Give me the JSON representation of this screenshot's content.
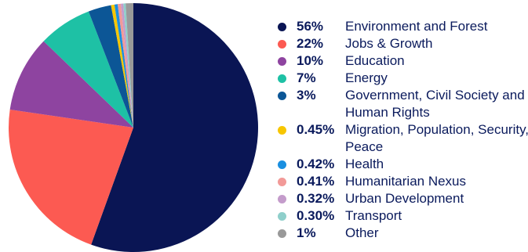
{
  "chart_data": {
    "type": "pie",
    "title": "",
    "series": [
      {
        "values": [
          56,
          22,
          10,
          7,
          3,
          0.45,
          0.42,
          0.41,
          0.32,
          0.3,
          1
        ]
      }
    ],
    "slices": [
      {
        "label": "Environment and Forest",
        "pct_label": "56%",
        "value": 56,
        "color": "#0a1554"
      },
      {
        "label": "Jobs & Growth",
        "pct_label": "22%",
        "value": 22,
        "color": "#fc5a52"
      },
      {
        "label": "Education",
        "pct_label": "10%",
        "value": 10,
        "color": "#8e44a0"
      },
      {
        "label": "Energy",
        "pct_label": "7%",
        "value": 7,
        "color": "#1ec1a5"
      },
      {
        "label": "Government, Civil Society and Human Rights",
        "pct_label": "3%",
        "value": 3,
        "color": "#0c5696"
      },
      {
        "label": "Migration, Population, Security, Peace",
        "pct_label": "0.45%",
        "value": 0.45,
        "color": "#f7c600"
      },
      {
        "label": "Health",
        "pct_label": "0.42%",
        "value": 0.42,
        "color": "#1a8fe0"
      },
      {
        "label": "Humanitarian Nexus",
        "pct_label": "0.41%",
        "value": 0.41,
        "color": "#f29a98"
      },
      {
        "label": "Urban Development",
        "pct_label": "0.32%",
        "value": 0.32,
        "color": "#c49ccb"
      },
      {
        "label": "Transport",
        "pct_label": "0.30%",
        "value": 0.3,
        "color": "#8fcfcb"
      },
      {
        "label": "Other",
        "pct_label": "1%",
        "value": 1,
        "color": "#999999"
      }
    ],
    "legend_position": "right",
    "start_angle_deg": 0,
    "direction": "clockwise"
  }
}
